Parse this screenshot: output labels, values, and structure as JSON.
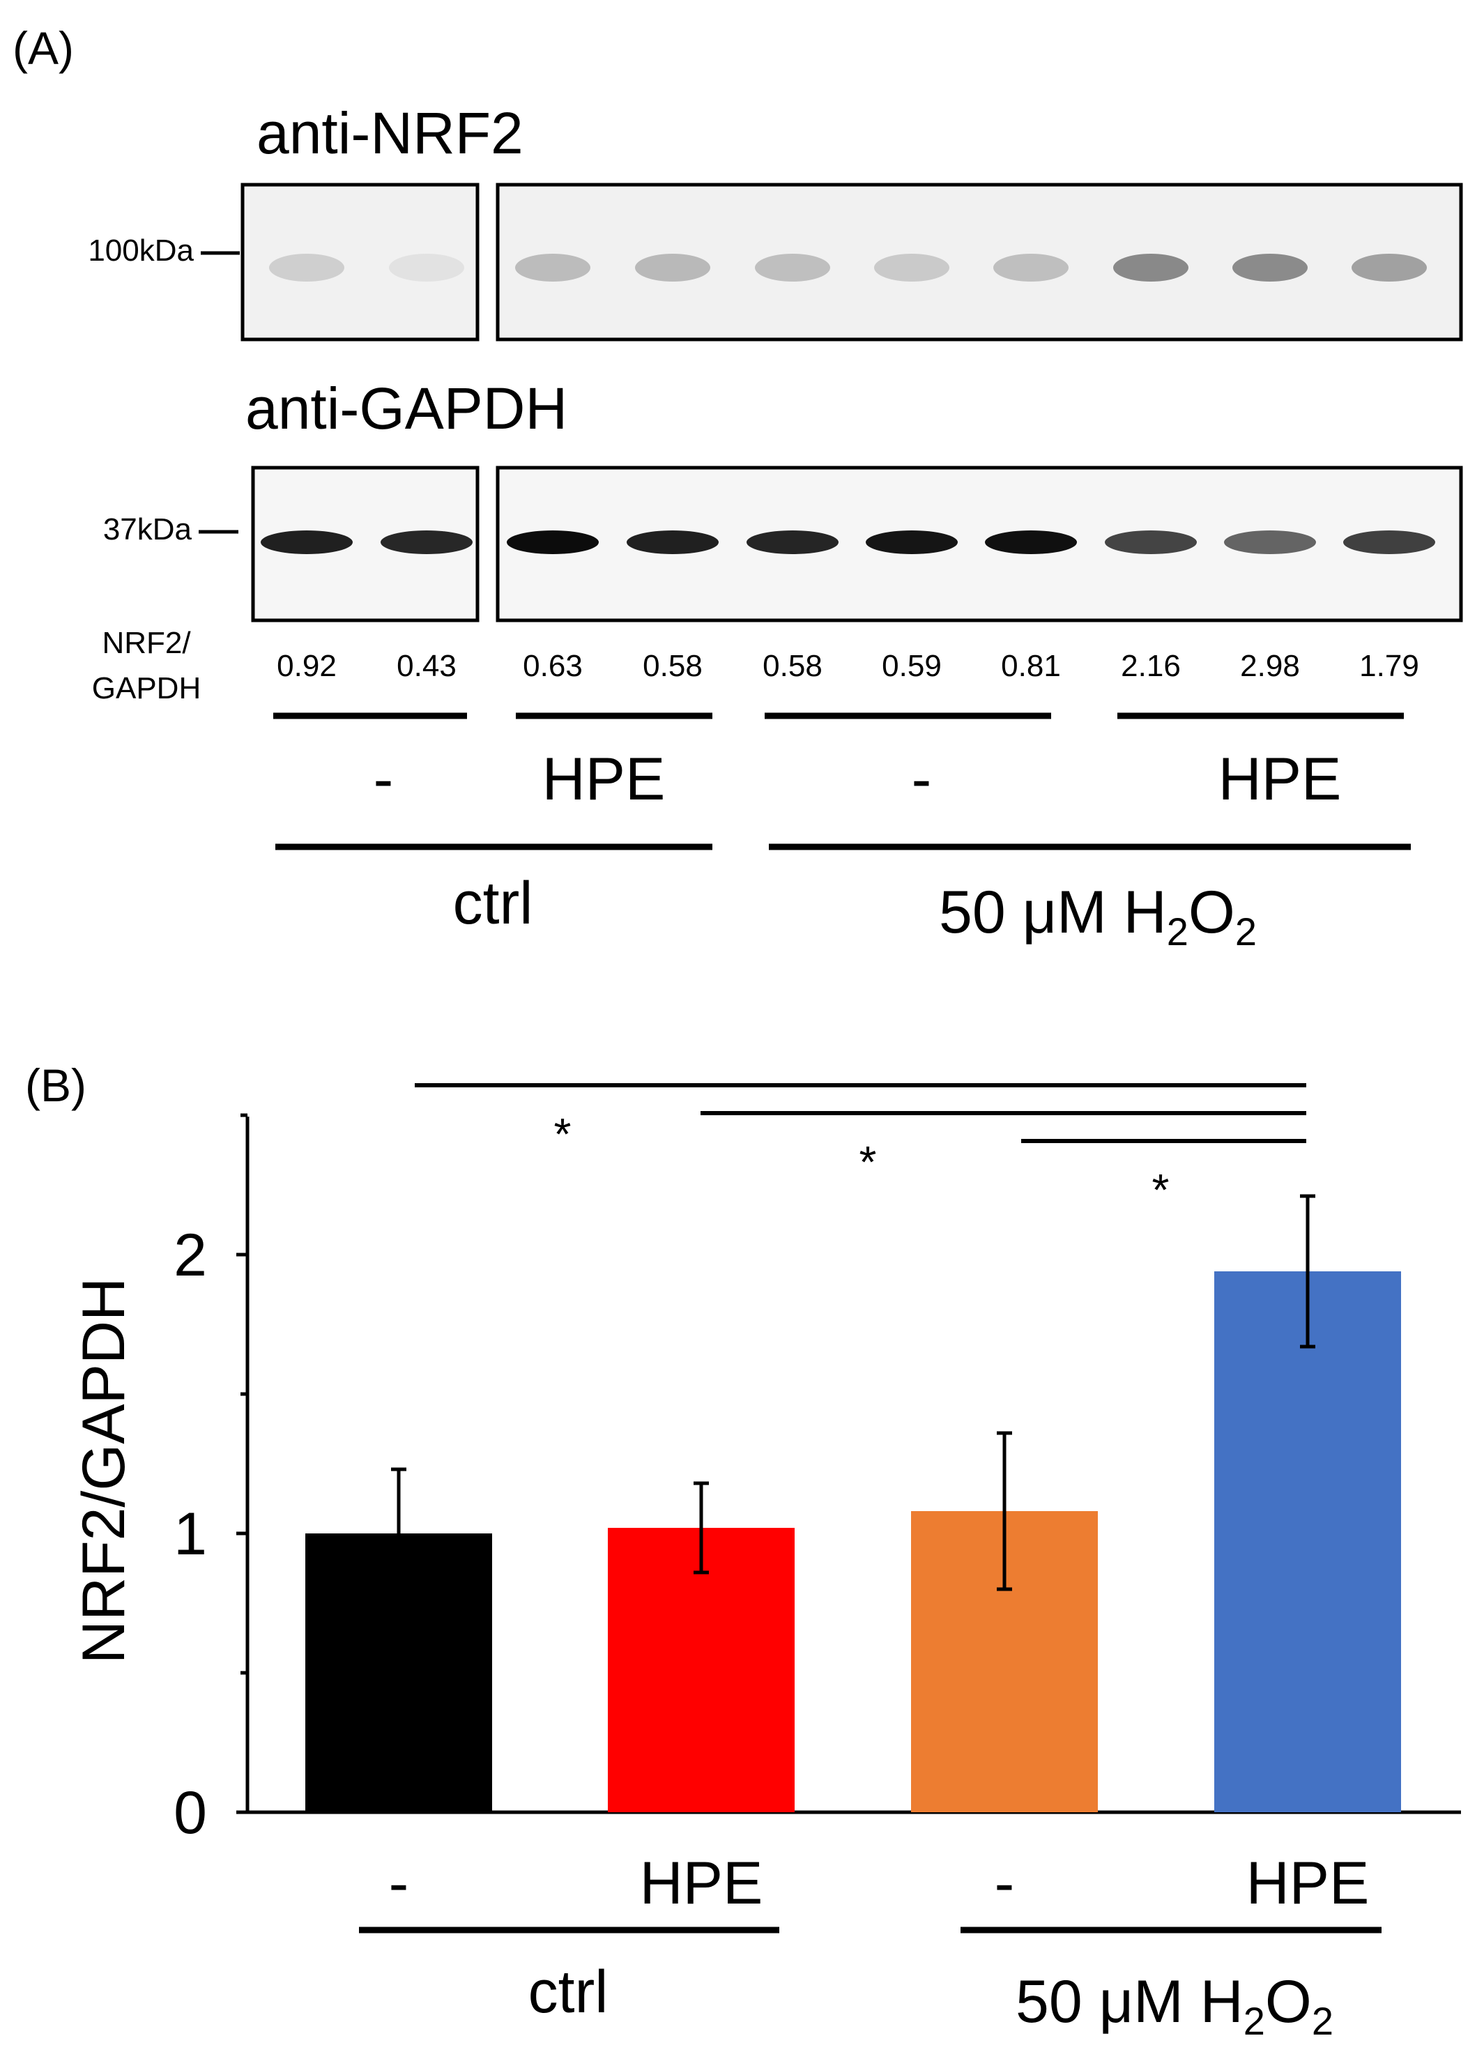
{
  "panel_a": {
    "label": "(A)",
    "nrf2_blot": {
      "title": "anti-NRF2",
      "marker": "100kDa"
    },
    "gapdh_blot": {
      "title": "anti-GAPDH",
      "marker": "37kDa"
    },
    "ratio_label_line1": "NRF2/",
    "ratio_label_line2": "GAPDH",
    "ratios": [
      "0.92",
      "0.43",
      "0.63",
      "0.58",
      "0.58",
      "0.59",
      "0.81",
      "2.16",
      "2.98",
      "1.79"
    ],
    "nrf2_band_intensity": [
      0.28,
      0.14,
      0.42,
      0.45,
      0.4,
      0.32,
      0.4,
      0.8,
      0.78,
      0.62
    ],
    "gapdh_band_intensity": [
      0.88,
      0.85,
      0.97,
      0.88,
      0.86,
      0.93,
      0.95,
      0.72,
      0.58,
      0.74
    ],
    "treatment_groups": [
      "-",
      "HPE",
      "-",
      "HPE"
    ],
    "condition_groups": [
      "ctrl",
      "50 μM H"
    ],
    "h2o2_subscript": "2",
    "h2o2_o": "O"
  },
  "panel_b": {
    "label": "(B)"
  },
  "chart_data": {
    "type": "bar",
    "title": "",
    "xlabel": "",
    "ylabel": "NRF2/GAPDH",
    "ylim": [
      0,
      2.5
    ],
    "yticks": [
      0,
      1,
      2
    ],
    "categories": [
      "-",
      "HPE",
      "-",
      "HPE"
    ],
    "values": [
      1.0,
      1.02,
      1.08,
      1.94
    ],
    "errors": [
      0.23,
      0.16,
      0.28,
      0.27
    ],
    "colors": [
      "#000000",
      "#ff0000",
      "#ed7d31",
      "#4472c4"
    ],
    "group_labels": [
      "ctrl",
      "50 μM H"
    ],
    "h2o2_subscript": "2",
    "h2o2_o": "O",
    "significance": [
      {
        "from": 0,
        "to": 3,
        "level": 2.6,
        "mark": "*"
      },
      {
        "from": 1,
        "to": 3,
        "level": 2.5,
        "mark": "*"
      },
      {
        "from": 2,
        "to": 3,
        "level": 2.4,
        "mark": "*"
      }
    ]
  }
}
